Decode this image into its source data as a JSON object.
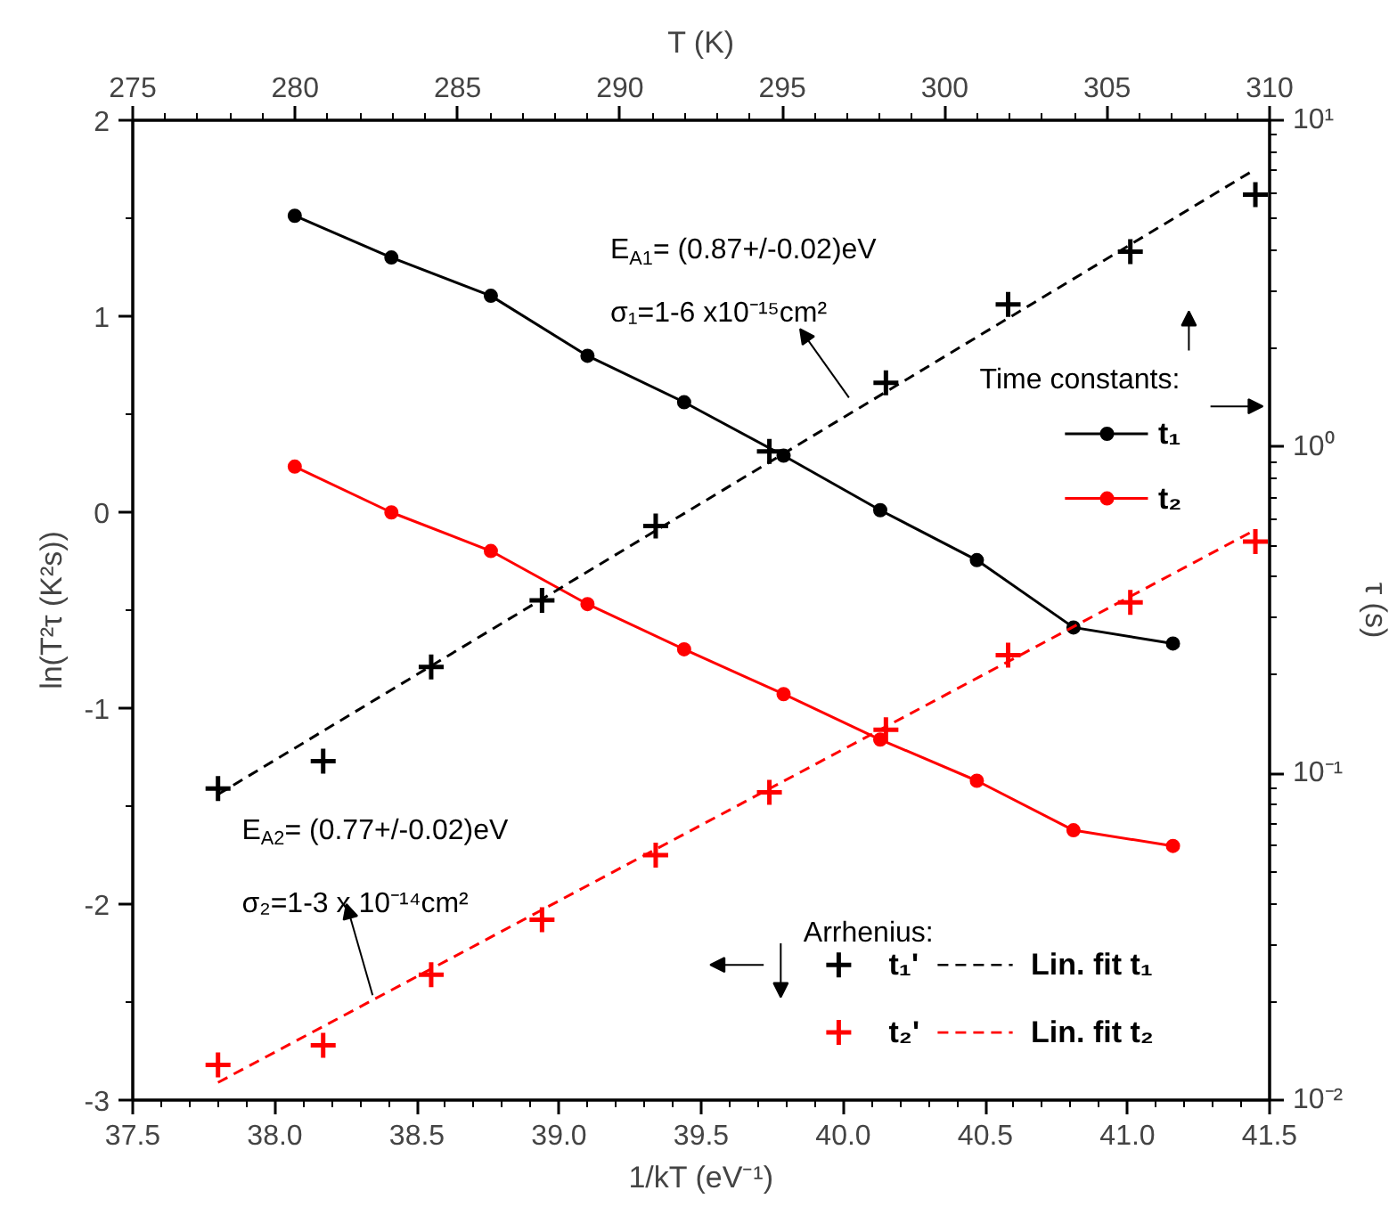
{
  "chart_data": {
    "type": "line",
    "xlabel": "1/kT (eV⁻¹)",
    "ylabel": "ln(T²τ (K²s))",
    "y2label": "τ (s)",
    "x2label": "T (K)",
    "legend_title": [
      "Time constants:",
      "Arrhenius:"
    ],
    "annotations": [
      "E$_{A1}$= (0.87+/-0.02)eV",
      "σ₁=1-6 x10⁻¹⁵cm²",
      "E$_{A2}$= (0.77+/-0.02)eV",
      "σ₂=1-3 x 10⁻¹⁴cm²"
    ],
    "xlim": [
      37.5,
      41.5
    ],
    "xticks": [
      {
        "value": 37.5,
        "label": "37.5"
      },
      {
        "value": 38,
        "label": "38.0"
      },
      {
        "value": 38.5,
        "label": "38.5"
      },
      {
        "value": 39,
        "label": "39.0"
      },
      {
        "value": 39.5,
        "label": "39.5"
      },
      {
        "value": 40,
        "label": "40.0"
      },
      {
        "value": 40.5,
        "label": "40.5"
      },
      {
        "value": 41,
        "label": "41.0"
      },
      {
        "value": 41.5,
        "label": "41.5"
      }
    ],
    "x2lim": [
      275,
      310
    ],
    "x2ticks": [
      275,
      280,
      285,
      290,
      295,
      300,
      305,
      310
    ],
    "ylim": [
      -3,
      2
    ],
    "yticks": [
      -3,
      -2,
      -1,
      0,
      1,
      2
    ],
    "y2lim": [
      0.01,
      10
    ],
    "y2ticks": [
      {
        "value": 0.01,
        "label": "10⁻²"
      },
      {
        "value": 0.1,
        "label": "10⁻¹"
      },
      {
        "value": 1,
        "label": "10⁰"
      },
      {
        "value": 10,
        "label": "10¹"
      }
    ],
    "log": "y2",
    "grid": false,
    "legend": "right",
    "series": [
      {
        "name": "t₁",
        "marker": "circle",
        "axis": "y2",
        "color": "#000000",
        "x": [
          38.07,
          38.41,
          38.76,
          39.1,
          39.44,
          39.79,
          40.13,
          40.47,
          40.81,
          41.16
        ],
        "values": [
          5.1,
          3.8,
          2.9,
          1.9,
          1.37,
          0.94,
          0.64,
          0.45,
          0.28,
          0.25
        ]
      },
      {
        "name": "t₂",
        "marker": "circle",
        "axis": "y2",
        "color": "#ff0000",
        "x": [
          38.07,
          38.41,
          38.76,
          39.1,
          39.44,
          39.79,
          40.13,
          40.47,
          40.81,
          41.16
        ],
        "values": [
          0.87,
          0.63,
          0.48,
          0.33,
          0.24,
          0.175,
          0.127,
          0.095,
          0.067,
          0.06
        ]
      },
      {
        "name": "t₁'",
        "type": "scatter",
        "marker": "cross",
        "color": "#000000",
        "x": [
          37.8,
          38.17,
          38.55,
          38.94,
          39.34,
          39.74,
          40.15,
          40.58,
          41.01,
          41.45
        ],
        "values": [
          -1.41,
          -1.27,
          -0.79,
          -0.45,
          -0.07,
          0.31,
          0.66,
          1.06,
          1.33,
          1.62
        ]
      },
      {
        "name": "t₂'",
        "type": "scatter",
        "marker": "cross",
        "color": "#ff0000",
        "x": [
          37.8,
          38.17,
          38.55,
          38.94,
          39.34,
          39.74,
          40.15,
          40.58,
          41.01,
          41.45
        ],
        "values": [
          -2.82,
          -2.72,
          -2.36,
          -2.08,
          -1.75,
          -1.43,
          -1.11,
          -0.73,
          -0.46,
          -0.15
        ]
      },
      {
        "name": "Lin. fit t₁",
        "marker": "none",
        "line_style": "dashed",
        "color": "#000000",
        "x": [
          37.8,
          41.45
        ],
        "values": [
          -1.44,
          1.75
        ]
      },
      {
        "name": "Lin. fit t₂",
        "marker": "none",
        "line_style": "dashed",
        "color": "#ff0000",
        "x": [
          37.8,
          41.45
        ],
        "values": [
          -2.91,
          -0.09
        ]
      }
    ]
  }
}
